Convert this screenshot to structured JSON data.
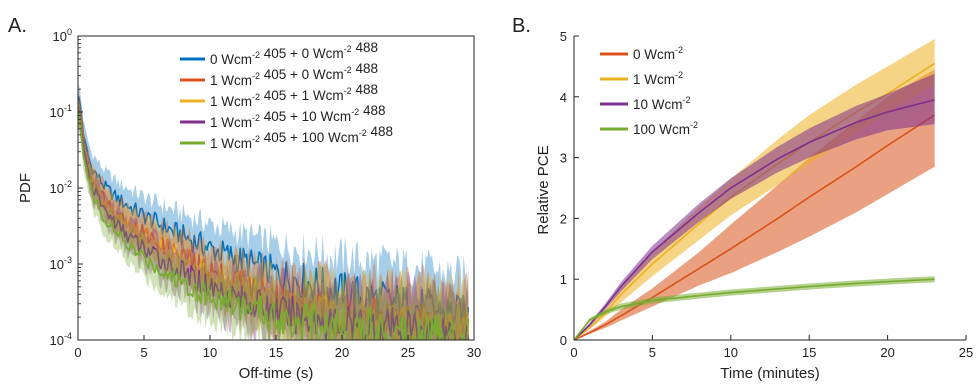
{
  "chart_data": [
    {
      "type": "line",
      "panel_label": "A.",
      "xlabel": "Off-time (s)",
      "ylabel": "PDF",
      "xlim": [
        0,
        30
      ],
      "ylim": [
        0.0001,
        1
      ],
      "yscale": "log",
      "x_ticks": [
        "0",
        "5",
        "10",
        "15",
        "20",
        "25",
        "30"
      ],
      "y_ticks": [
        {
          "base": "10",
          "exp": "0"
        },
        {
          "base": "10",
          "exp": "-1"
        },
        {
          "base": "10",
          "exp": "-2"
        },
        {
          "base": "10",
          "exp": "-3"
        },
        {
          "base": "10",
          "exp": "-4"
        }
      ],
      "legend_position": "top-right",
      "series": [
        {
          "legend": [
            {
              "t": "0 Wcm"
            },
            {
              "s": "-2"
            },
            {
              "t": " 405 + 0 Wcm"
            },
            {
              "s": "-2"
            },
            {
              "t": " 488"
            }
          ],
          "color": "#0072bd",
          "x": [
            0.1,
            0.5,
            1,
            2,
            3,
            4,
            5,
            7,
            10,
            15,
            20,
            25,
            29.5
          ],
          "y": [
            0.15,
            0.04,
            0.019,
            0.0105,
            0.0072,
            0.0055,
            0.0043,
            0.0028,
            0.0016,
            0.00075,
            0.00042,
            0.00028,
            0.0002
          ]
        },
        {
          "legend": [
            {
              "t": "1 Wcm"
            },
            {
              "s": "-2"
            },
            {
              "t": " 405 + 0 Wcm"
            },
            {
              "s": "-2"
            },
            {
              "t": " 488"
            }
          ],
          "color": "#d95319",
          "x": [
            0.1,
            0.5,
            1,
            2,
            3,
            4,
            5,
            7,
            10,
            15,
            20,
            25,
            29.5
          ],
          "y": [
            0.12,
            0.03,
            0.014,
            0.0072,
            0.0046,
            0.0033,
            0.0025,
            0.0015,
            0.0008,
            0.00036,
            0.0002,
            0.00017,
            0.00015
          ]
        },
        {
          "legend": [
            {
              "t": "1 Wcm"
            },
            {
              "s": "-2"
            },
            {
              "t": " 405 + 1 Wcm"
            },
            {
              "s": "-2"
            },
            {
              "t": " 488"
            }
          ],
          "color": "#edb120",
          "x": [
            0.1,
            0.5,
            1,
            2,
            3,
            4,
            5,
            7,
            10,
            15,
            20,
            25,
            29.5
          ],
          "y": [
            0.11,
            0.028,
            0.013,
            0.0065,
            0.0041,
            0.003,
            0.0022,
            0.0013,
            0.00068,
            0.0003,
            0.00018,
            0.00015,
            0.00014
          ]
        },
        {
          "legend": [
            {
              "t": "1 Wcm"
            },
            {
              "s": "-2"
            },
            {
              "t": " 405 + 10 Wcm"
            },
            {
              "s": "-2"
            },
            {
              "t": " 488"
            }
          ],
          "color": "#7e2f8e",
          "x": [
            0.1,
            0.5,
            1,
            2,
            3,
            4,
            5,
            7,
            10,
            15,
            20,
            25,
            29.5
          ],
          "y": [
            0.1,
            0.025,
            0.011,
            0.0052,
            0.0032,
            0.0022,
            0.0016,
            0.00095,
            0.0005,
            0.00024,
            0.00016,
            0.00014,
            0.00013
          ]
        },
        {
          "legend": [
            {
              "t": "1 Wcm"
            },
            {
              "s": "-2"
            },
            {
              "t": " 405 + 100 Wcm"
            },
            {
              "s": "-2"
            },
            {
              "t": " 488"
            }
          ],
          "color": "#77ac30",
          "x": [
            0.1,
            0.5,
            1,
            2,
            3,
            4,
            5,
            7,
            10,
            15,
            20,
            25,
            29.5
          ],
          "y": [
            0.09,
            0.022,
            0.009,
            0.004,
            0.0024,
            0.0016,
            0.0012,
            0.0007,
            0.00038,
            0.0002,
            0.00015,
            0.00013,
            0.00012
          ]
        }
      ]
    },
    {
      "type": "area",
      "panel_label": "B.",
      "xlabel": "Time (minutes)",
      "ylabel": "Relative PCE",
      "xlim": [
        0,
        25
      ],
      "ylim": [
        0,
        5
      ],
      "x_ticks": [
        "0",
        "5",
        "10",
        "15",
        "20",
        "25"
      ],
      "y_ticks": [
        "0",
        "1",
        "2",
        "3",
        "4",
        "5"
      ],
      "legend_position": "top-left",
      "series": [
        {
          "legend": [
            {
              "t": "0 Wcm"
            },
            {
              "s": "-2"
            }
          ],
          "color": "#d95319",
          "x": [
            0,
            1,
            2,
            3,
            5,
            8,
            10,
            13,
            15,
            18,
            20,
            23
          ],
          "y": [
            0,
            0.12,
            0.25,
            0.4,
            0.7,
            1.18,
            1.5,
            2.0,
            2.35,
            2.85,
            3.2,
            3.7
          ],
          "y_low": [
            0,
            0.1,
            0.2,
            0.32,
            0.55,
            0.9,
            1.1,
            1.45,
            1.7,
            2.1,
            2.4,
            2.85
          ],
          "y_high": [
            0,
            0.15,
            0.3,
            0.5,
            0.85,
            1.45,
            1.9,
            2.55,
            3.0,
            3.6,
            4.0,
            4.45
          ]
        },
        {
          "legend": [
            {
              "t": "1 Wcm"
            },
            {
              "s": "-2"
            }
          ],
          "color": "#edb120",
          "x": [
            0,
            1,
            2,
            3,
            5,
            8,
            10,
            13,
            15,
            18,
            20,
            23
          ],
          "y": [
            0,
            0.2,
            0.45,
            0.75,
            1.25,
            1.92,
            2.35,
            2.9,
            3.25,
            3.75,
            4.05,
            4.55
          ],
          "y_low": [
            0,
            0.18,
            0.38,
            0.62,
            1.05,
            1.65,
            2.05,
            2.55,
            2.9,
            3.4,
            3.75,
            4.2
          ],
          "y_high": [
            0,
            0.22,
            0.5,
            0.85,
            1.45,
            2.2,
            2.65,
            3.3,
            3.7,
            4.2,
            4.5,
            4.95
          ]
        },
        {
          "legend": [
            {
              "t": "10 Wcm"
            },
            {
              "s": "-2"
            }
          ],
          "color": "#7e2f8e",
          "x": [
            0,
            1,
            2,
            3,
            5,
            8,
            10,
            13,
            15,
            18,
            20,
            23
          ],
          "y": [
            0,
            0.25,
            0.55,
            0.88,
            1.45,
            2.1,
            2.5,
            2.98,
            3.25,
            3.58,
            3.75,
            3.95
          ],
          "y_low": [
            0,
            0.22,
            0.5,
            0.8,
            1.33,
            1.95,
            2.32,
            2.76,
            3.0,
            3.3,
            3.45,
            3.55
          ],
          "y_high": [
            0,
            0.28,
            0.6,
            0.95,
            1.55,
            2.25,
            2.66,
            3.18,
            3.48,
            3.85,
            4.05,
            4.38
          ]
        },
        {
          "legend": [
            {
              "t": "100 Wcm"
            },
            {
              "s": "-2"
            }
          ],
          "color": "#77ac30",
          "x": [
            0,
            1,
            2,
            3,
            5,
            8,
            10,
            13,
            15,
            18,
            20,
            23
          ],
          "y": [
            0,
            0.33,
            0.46,
            0.55,
            0.65,
            0.73,
            0.78,
            0.84,
            0.88,
            0.93,
            0.96,
            1.0
          ],
          "y_low": [
            0,
            0.3,
            0.42,
            0.5,
            0.6,
            0.68,
            0.73,
            0.79,
            0.83,
            0.88,
            0.91,
            0.95
          ],
          "y_high": [
            0,
            0.36,
            0.5,
            0.6,
            0.7,
            0.78,
            0.83,
            0.89,
            0.93,
            0.98,
            1.01,
            1.05
          ]
        }
      ]
    }
  ]
}
